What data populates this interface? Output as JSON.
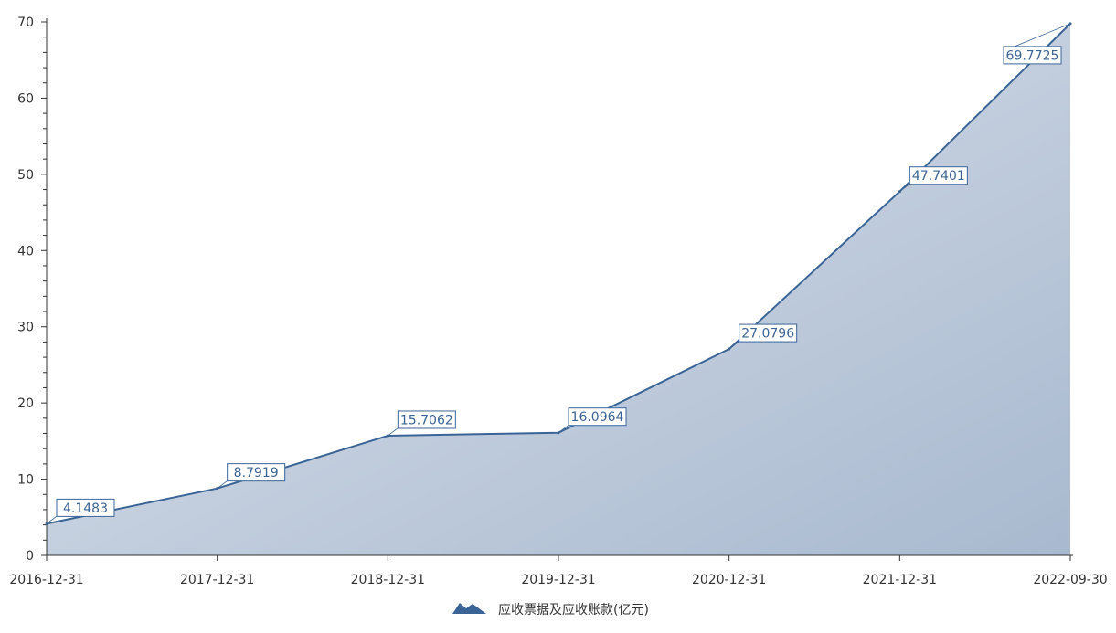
{
  "chart_data": {
    "type": "area",
    "categories": [
      "2016-12-31",
      "2017-12-31",
      "2018-12-31",
      "2019-12-31",
      "2020-12-31",
      "2021-12-31",
      "2022-09-30"
    ],
    "series": [
      {
        "name": "应收票据及应收账款(亿元)",
        "values": [
          4.1483,
          8.7919,
          15.7062,
          16.0964,
          27.0796,
          47.7401,
          69.7725
        ],
        "data_labels": [
          "4.1483",
          "8.7919",
          "15.7062",
          "16.0964",
          "27.0796",
          "47.7401",
          "69.7725"
        ]
      }
    ],
    "yticks": [
      "0",
      "10",
      "20",
      "30",
      "40",
      "50",
      "60",
      "70"
    ],
    "ylim": [
      0,
      70
    ],
    "title": "",
    "xlabel": "",
    "ylabel": "",
    "grid": false,
    "legend_position": "bottom-center",
    "colors": {
      "line": "#3a6496",
      "label_text": "#3a6496",
      "label_border": "#3a6496",
      "area_start": "#dfe5ee",
      "area_end": "#a8b9cf",
      "axis": "#333333",
      "legend_icon": "#3a6496"
    }
  },
  "legend": {
    "label": "应收票据及应收账款(亿元)",
    "icon": "area-chart-icon"
  }
}
